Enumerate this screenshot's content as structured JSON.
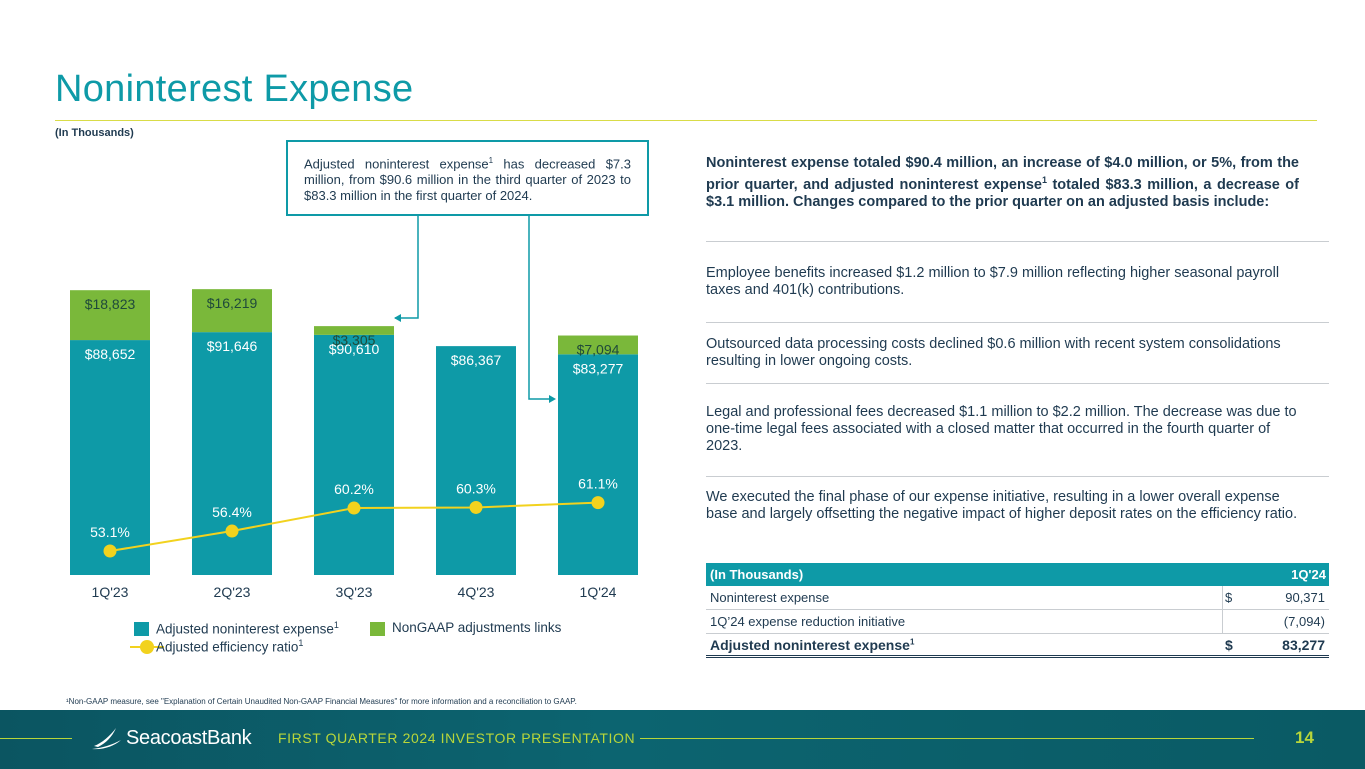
{
  "page": {
    "title": "Noninterest Expense",
    "units_note": "(In Thousands)",
    "footnote": "¹Non-GAAP measure, see \"Explanation of Certain Unaudited Non-GAAP Financial Measures\" for more information and a reconciliation to GAAP."
  },
  "callout": {
    "text_a": "Adjusted noninterest expense",
    "sup": "1",
    "text_b": " has decreased $7.3 million, from $90.6 million in the third quarter of 2023 to $83.3 million in the first quarter of 2024."
  },
  "legend": {
    "adjusted_label": "Adjusted noninterest expense",
    "adjusted_sup": "1",
    "nongaap_label": "NonGAAP adjustments links",
    "ratio_label": "Adjusted efficiency ratio",
    "ratio_sup": "1"
  },
  "chart_data": {
    "type": "bar",
    "stacked": true,
    "categories": [
      "1Q'23",
      "2Q'23",
      "3Q'23",
      "4Q'23",
      "1Q'24"
    ],
    "series": [
      {
        "name": "Adjusted noninterest expense",
        "values": [
          88652,
          91646,
          90610,
          86367,
          83277
        ],
        "labels": [
          "$88,652",
          "$91,646",
          "$90,610",
          "$86,367",
          "$83,277"
        ],
        "color": "#0e9aa7"
      },
      {
        "name": "NonGAAP adjustments links",
        "values": [
          18823,
          16219,
          3305,
          0,
          7094
        ],
        "labels": [
          "$18,823",
          "$16,219",
          "$3,305",
          "",
          "$7,094"
        ],
        "color": "#7ab83a"
      }
    ],
    "line_series": {
      "name": "Adjusted efficiency ratio",
      "values": [
        53.1,
        56.4,
        60.2,
        60.3,
        61.1
      ],
      "labels": [
        "53.1%",
        "56.4%",
        "60.2%",
        "60.3%",
        "61.1%"
      ],
      "color": "#f2d21e"
    }
  },
  "commentary": {
    "intro_a": "Noninterest expense totaled $90.4 million, an increase of $4.0 million, or 5%, from the prior quarter, and adjusted noninterest expense",
    "intro_sup": "1",
    "intro_b": " totaled $83.3 million, a decrease of $3.1 million. Changes compared to the prior quarter on an adjusted basis include:",
    "bullets": [
      "Employee benefits increased $1.2 million to $7.9 million reflecting higher seasonal payroll taxes and 401(k) contributions.",
      "Outsourced data processing costs declined $0.6 million with recent system consolidations resulting in lower ongoing costs.",
      "Legal and professional fees decreased $1.1 million to $2.2 million. The decrease was due to one-time legal fees associated with a closed matter that occurred in the fourth quarter of 2023.",
      "We executed the final phase of our expense initiative, resulting in a lower overall expense base and largely offsetting the negative impact of higher deposit rates on the efficiency ratio."
    ]
  },
  "table": {
    "header_label": "(In Thousands)",
    "header_period": "1Q'24",
    "rows": [
      {
        "label": "Noninterest expense",
        "currency": "$",
        "value": "90,371"
      },
      {
        "label": "1Q’24 expense reduction initiative",
        "currency": "",
        "value": "(7,094)"
      },
      {
        "label": "Adjusted noninterest expense",
        "sup": "1",
        "currency": "$",
        "value": "83,277"
      }
    ]
  },
  "footer": {
    "brand": "SeacoastBank",
    "presentation_title": "FIRST QUARTER 2024 INVESTOR PRESENTATION",
    "page_number": "14"
  },
  "colors": {
    "teal": "#0e9aa7",
    "green": "#7ab83a",
    "yellow": "#f2d21e",
    "navy": "#1f3a50",
    "accent_line": "#d9dc48"
  }
}
